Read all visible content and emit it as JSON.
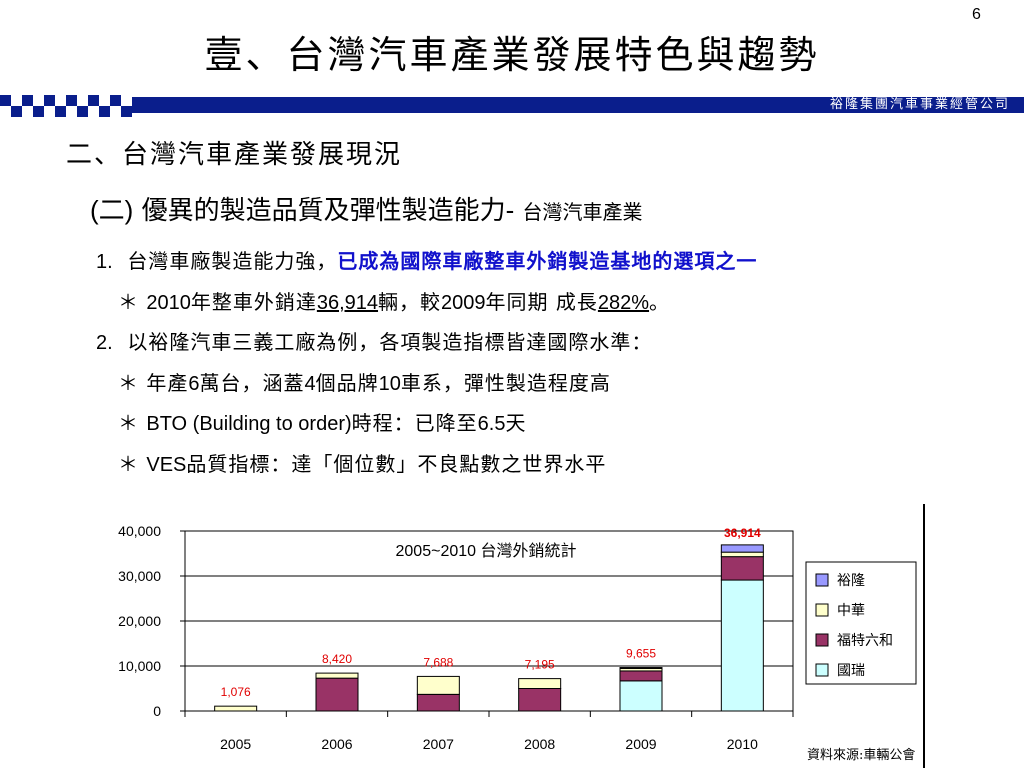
{
  "page_number": "6",
  "title": "壹、台灣汽車產業發展特色與趨勢",
  "company": "裕隆集團汽車事業經管公司",
  "section_heading": "二、台灣汽車產業發展現況",
  "subheading": {
    "prefix": "(二)",
    "main": "優異的製造品質及彈性製造能力",
    "dash": "-",
    "tail": "台灣汽車產業"
  },
  "item1": {
    "num": "1.",
    "text": "台灣車廠製造能力強，",
    "highlight": "已成為國際車廠整車外銷製造基地的選項之一"
  },
  "item1_sub": {
    "star": "＊",
    "p1": "2010",
    "p2": "年整車外銷達",
    "p3": "36,914",
    "p4": "輛，較",
    "p5": "2009",
    "p6": "年同期 成長",
    "p7": "282%",
    "p8": "。"
  },
  "item2": {
    "num": "2.",
    "text": "以裕隆汽車三義工廠為例，各項製造指標皆達國際水準："
  },
  "item2_a": {
    "star": "＊",
    "p1": "年產",
    "p2": "6",
    "p3": "萬台，涵蓋",
    "p4": "4",
    "p5": "個品牌",
    "p6": "10",
    "p7": "車系，彈性製造程度高"
  },
  "item2_b": {
    "star": "＊",
    "p1": "BTO (Building to order)",
    "p2": "時程：已降至",
    "p3": "6.5",
    "p4": "天"
  },
  "item2_c": {
    "star": "＊",
    "p1": "VES",
    "p2": "品質指標：達「個位數」不良點數之世界水平"
  },
  "source": "資料來源:車輛公會",
  "chart_data": {
    "type": "bar",
    "stacked": true,
    "title": "2005~2010 台灣外銷統計",
    "categories": [
      "2005",
      "2006",
      "2007",
      "2008",
      "2009",
      "2010"
    ],
    "y_ticks": [
      "0",
      "10,000",
      "20,000",
      "30,000",
      "40,000"
    ],
    "ylim": [
      0,
      40000
    ],
    "grid": true,
    "legend_position": "right",
    "series": [
      {
        "name": "國瑞",
        "color": "#ccffff",
        "values": [
          0,
          0,
          0,
          0,
          6700,
          29100
        ]
      },
      {
        "name": "福特六和",
        "color": "#993366",
        "values": [
          0,
          7300,
          3700,
          5000,
          2200,
          5200
        ]
      },
      {
        "name": "中華",
        "color": "#ffffcc",
        "values": [
          1076,
          1120,
          3988,
          2195,
          555,
          1000
        ]
      },
      {
        "name": "裕隆",
        "color": "#9999ff",
        "values": [
          0,
          0,
          0,
          0,
          200,
          1614
        ]
      }
    ],
    "totals": [
      "1,076",
      "8,420",
      "7,688",
      "7,195",
      "9,655",
      "36,914"
    ],
    "total_label_color": "#e00000",
    "highlight_total_index": 5
  }
}
